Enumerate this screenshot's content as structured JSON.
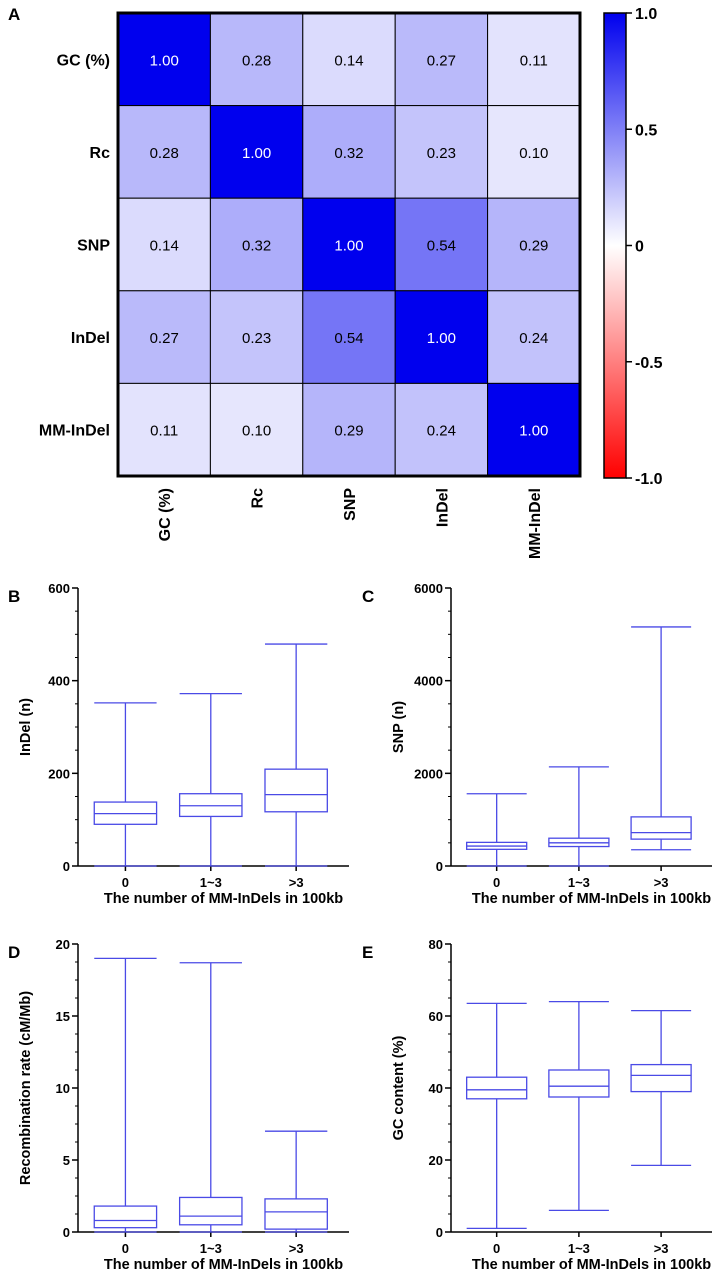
{
  "panel_labels": [
    "A",
    "B",
    "C",
    "D",
    "E"
  ],
  "chart_data": [
    {
      "panel": "A",
      "type": "heatmap",
      "title": "",
      "row_labels": [
        "GC (%)",
        "Rc",
        "SNP",
        "InDel",
        "MM-InDel"
      ],
      "col_labels": [
        "GC (%)",
        "Rc",
        "SNP",
        "InDel",
        "MM-InDel"
      ],
      "values": [
        [
          1.0,
          0.28,
          0.14,
          0.27,
          0.11
        ],
        [
          0.28,
          1.0,
          0.32,
          0.23,
          0.1
        ],
        [
          0.14,
          0.32,
          1.0,
          0.54,
          0.29
        ],
        [
          0.27,
          0.23,
          0.54,
          1.0,
          0.24
        ],
        [
          0.11,
          0.1,
          0.29,
          0.24,
          1.0
        ]
      ],
      "value_labels": [
        [
          "1.00",
          "0.28",
          "0.14",
          "0.27",
          "0.11"
        ],
        [
          "0.28",
          "1.00",
          "0.32",
          "0.23",
          "0.10"
        ],
        [
          "0.14",
          "0.32",
          "1.00",
          "0.54",
          "0.29"
        ],
        [
          "0.27",
          "0.23",
          "0.54",
          "1.00",
          "0.24"
        ],
        [
          "0.11",
          "0.10",
          "0.29",
          "0.24",
          "1.00"
        ]
      ],
      "colorbar": {
        "range": [
          -1.0,
          1.0
        ],
        "ticks": [
          1.0,
          0.5,
          0,
          -0.5,
          -1.0
        ],
        "tick_labels": [
          "1.0",
          "0.5",
          "0",
          "-0.5",
          "-1.0"
        ],
        "high_color": "#0000ee",
        "mid_color": "#ffffff",
        "low_color": "#ff0000"
      }
    },
    {
      "panel": "B",
      "type": "box",
      "categories": [
        "0",
        "1~3",
        ">3"
      ],
      "xlabel": "The number of MM-InDels in 100kb",
      "ylabel": "InDel (n)",
      "ylim": [
        0,
        600
      ],
      "yticks": [
        0,
        200,
        400,
        600
      ],
      "ytick_labels": [
        "0",
        "200",
        "400",
        "600"
      ],
      "boxes": [
        {
          "min": 0,
          "q1": 90,
          "median": 113,
          "q3": 138,
          "max": 352
        },
        {
          "min": 0,
          "q1": 107,
          "median": 130,
          "q3": 156,
          "max": 372
        },
        {
          "min": 0,
          "q1": 117,
          "median": 154,
          "q3": 209,
          "max": 479
        }
      ]
    },
    {
      "panel": "C",
      "type": "box",
      "categories": [
        "0",
        "1~3",
        ">3"
      ],
      "xlabel": "The number of MM-InDels in 100kb",
      "ylabel": "SNP (n)",
      "ylim": [
        0,
        6000
      ],
      "yticks": [
        0,
        2000,
        4000,
        6000
      ],
      "ytick_labels": [
        "0",
        "2000",
        "4000",
        "6000"
      ],
      "boxes": [
        {
          "min": 0,
          "q1": 360,
          "median": 430,
          "q3": 510,
          "max": 1560
        },
        {
          "min": 0,
          "q1": 420,
          "median": 500,
          "q3": 600,
          "max": 2140
        },
        {
          "min": 350,
          "q1": 580,
          "median": 720,
          "q3": 1060,
          "max": 5160
        }
      ]
    },
    {
      "panel": "D",
      "type": "box",
      "categories": [
        "0",
        "1~3",
        ">3"
      ],
      "xlabel": "The number of MM-InDels in 100kb",
      "ylabel": "Recombination rate (cM/Mb)",
      "ylim": [
        0,
        20
      ],
      "yticks": [
        0,
        5,
        10,
        15,
        20
      ],
      "ytick_labels": [
        "0",
        "5",
        "10",
        "15",
        "20"
      ],
      "boxes": [
        {
          "min": 0,
          "q1": 0.3,
          "median": 0.8,
          "q3": 1.8,
          "max": 19.0
        },
        {
          "min": 0,
          "q1": 0.5,
          "median": 1.1,
          "q3": 2.4,
          "max": 18.7
        },
        {
          "min": 0,
          "q1": 0.2,
          "median": 1.4,
          "q3": 2.3,
          "max": 7.0
        }
      ]
    },
    {
      "panel": "E",
      "type": "box",
      "categories": [
        "0",
        "1~3",
        ">3"
      ],
      "xlabel": "The number of MM-InDels in 100kb",
      "ylabel": "GC content (%)",
      "ylim": [
        0,
        80
      ],
      "yticks": [
        0,
        20,
        40,
        60,
        80
      ],
      "ytick_labels": [
        "0",
        "20",
        "40",
        "60",
        "80"
      ],
      "boxes": [
        {
          "min": 1,
          "q1": 37,
          "median": 39.5,
          "q3": 43,
          "max": 63.5
        },
        {
          "min": 6,
          "q1": 37.5,
          "median": 40.5,
          "q3": 45,
          "max": 64
        },
        {
          "min": 18.5,
          "q1": 39,
          "median": 43.5,
          "q3": 46.5,
          "max": 61.5
        }
      ]
    }
  ]
}
